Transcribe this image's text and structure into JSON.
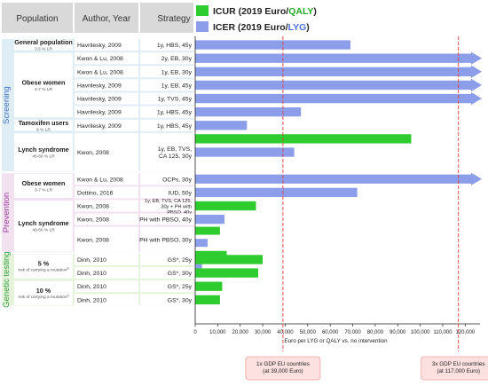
{
  "headers": {
    "population": "Population",
    "author_year": "Author, Year",
    "strategy": "Strategy"
  },
  "legend": {
    "icur_prefix": "ICUR (2019 Euro/",
    "icur_unit": "QALY",
    "icur_suffix": ")",
    "icer_prefix": "ICER (2019 Euro/",
    "icer_unit": "LYG",
    "icer_suffix": ")"
  },
  "colors": {
    "icur": "#2ecc2e",
    "icer": "#8c9eea",
    "qaly_text": "#22aa22",
    "lyg_text": "#4f6fd6",
    "screening": "#3c6fc0",
    "prevention": "#9a3aa0",
    "genetic": "#2e9e3e",
    "gdp_line": "#e24040"
  },
  "sections": [
    {
      "label": "Screening",
      "from_row": 0,
      "to_row": 9,
      "bg": "#dfeef4"
    },
    {
      "label": "Prevention",
      "from_row": 10,
      "to_row": 15,
      "bg": "#f2e2f0"
    },
    {
      "label": "Genetic testing",
      "from_row": 16,
      "to_row": 19,
      "bg": "#e4f3d9"
    }
  ],
  "populations": [
    {
      "name": "General population",
      "sub": "3.5 % LR",
      "from_row": 0,
      "to_row": 0
    },
    {
      "name": "Obese women",
      "sub": "4-7 % LR",
      "from_row": 1,
      "to_row": 5
    },
    {
      "name": "Tamoxifen users",
      "sub": "6 % LR",
      "from_row": 6,
      "to_row": 6
    },
    {
      "name": "Lynch syndrome",
      "sub": "40-60 %  LR",
      "from_row": 7,
      "to_row": 9
    },
    {
      "name": "Obese women",
      "sub": "3-7 % LR",
      "from_row": 10,
      "to_row": 11
    },
    {
      "name": "Lynch syndrome",
      "sub": "40-60 %  LR",
      "from_row": 12,
      "to_row": 15
    },
    {
      "name": "5 %",
      "sub": "risk of carrying a mutation",
      "sup": "§",
      "from_row": 16,
      "to_row": 17
    },
    {
      "name": "10 %",
      "sub": "risk of carrying a mutation",
      "sup": "§",
      "from_row": 18,
      "to_row": 19
    }
  ],
  "rows": [
    {
      "author": "Havrilesky, 2009",
      "strategy": [
        "1y, HBS, 45y"
      ]
    },
    {
      "author": "Kwon & Lu, 2008",
      "strategy": [
        "2y, EB, 30y"
      ]
    },
    {
      "author": "Kwon & Lu, 2008",
      "strategy": [
        "1y, EB, 30y"
      ]
    },
    {
      "author": "Havrilesky, 2009",
      "strategy": [
        "1y, EB, 45y"
      ]
    },
    {
      "author": "Havrilesky, 2009",
      "strategy": [
        "1y, TVS, 45y"
      ]
    },
    {
      "author": "Havrilesky, 2009",
      "strategy": [
        "1y, HBS, 45y"
      ]
    },
    {
      "author": "Havrilesky, 2009",
      "strategy": [
        "1y, HBS, 45y"
      ]
    },
    {
      "author": "Kwon, 2008",
      "strategy": [
        "1y, EB, TVS,",
        "CA 125, 30y"
      ]
    },
    {
      "author": "",
      "strategy": []
    },
    {
      "author": "",
      "strategy": []
    },
    {
      "author": "Kwon & Lu, 2008",
      "strategy": [
        "OCPs, 30y"
      ]
    },
    {
      "author": "Dottino, 2016",
      "strategy": [
        "IUD, 50y"
      ]
    },
    {
      "author": "Kwon, 2008",
      "strategy": [
        "1y, EB, TVS, CA 125,",
        "30y + PH with",
        "PBSO, 40y"
      ],
      "small": true
    },
    {
      "author": "Kwon, 2008",
      "strategy": [
        "PH with PBSO, 40y"
      ]
    },
    {
      "author": "Kwon, 2008",
      "strategy": [
        "PH with PBSO, 30y"
      ]
    },
    {
      "author": "",
      "strategy": []
    },
    {
      "author": "Dinh, 2010",
      "strategy": [
        "GS*, 25y"
      ]
    },
    {
      "author": "Dinh, 2010",
      "strategy": [
        "GS*, 30y"
      ]
    },
    {
      "author": "Dinh, 2010",
      "strategy": [
        "GS*, 25y"
      ]
    },
    {
      "author": "Dinh, 2010",
      "strategy": [
        "GS*, 30y"
      ]
    }
  ],
  "chart_data": {
    "type": "bar",
    "orientation": "horizontal",
    "xlabel": "Euro per LYG or QALY vs. no intervention",
    "xlim": [
      0,
      125000
    ],
    "ticks": [
      0,
      10000,
      20000,
      30000,
      40000,
      50000,
      60000,
      70000,
      80000,
      90000,
      100000,
      110000,
      120000
    ],
    "tick_labels": [
      "0",
      "10,000",
      "20,000",
      "30,000",
      "40,000",
      "50,000",
      "60,000",
      "70,000",
      "80,000",
      "90,000",
      "100,000",
      "110,000",
      "120,000"
    ],
    "series_names": [
      "ICUR",
      "ICER"
    ],
    "bars": [
      {
        "row": 0,
        "series": "ICER",
        "value": 69000
      },
      {
        "row": 1,
        "series": "ICER",
        "value": 125000,
        "exceeds": true
      },
      {
        "row": 2,
        "series": "ICER",
        "value": 125000,
        "exceeds": true
      },
      {
        "row": 3,
        "series": "ICER",
        "value": 125000,
        "exceeds": true
      },
      {
        "row": 4,
        "series": "ICER",
        "value": 125000,
        "exceeds": true
      },
      {
        "row": 5,
        "series": "ICER",
        "value": 47000
      },
      {
        "row": 6,
        "series": "ICER",
        "value": 23000
      },
      {
        "row": 7,
        "series": "ICUR",
        "value": 96000
      },
      {
        "row": 8,
        "series": "ICER",
        "value": 44000
      },
      {
        "row": 10,
        "series": "ICER",
        "value": 125000,
        "exceeds": true
      },
      {
        "row": 11,
        "series": "ICER",
        "value": 72000
      },
      {
        "row": 12,
        "series": "ICUR",
        "value": 27000
      },
      {
        "row": 13,
        "series": "ICER",
        "value": 13000
      },
      {
        "row": 13.9,
        "series": "ICUR",
        "value": 11000
      },
      {
        "row": 14.8,
        "series": "ICER",
        "value": 5500
      },
      {
        "row": 15.7,
        "series": "ICUR",
        "value": 14000
      },
      {
        "row": 16.6,
        "series": "ICER",
        "value": 3000
      },
      {
        "row": 16,
        "series": "ICUR",
        "value": 30000
      },
      {
        "row": 17,
        "series": "ICUR",
        "value": 28000
      },
      {
        "row": 18,
        "series": "ICUR",
        "value": 12000
      },
      {
        "row": 19,
        "series": "ICUR",
        "value": 11000
      }
    ],
    "reference_lines": [
      {
        "value": 39000,
        "label_lines": [
          "1x GDP EU countries",
          "(at 39,000 Euro)"
        ]
      },
      {
        "value": 117000,
        "label_lines": [
          "3x GDP EU countries",
          "(at 117,000 Euro)"
        ]
      }
    ]
  }
}
